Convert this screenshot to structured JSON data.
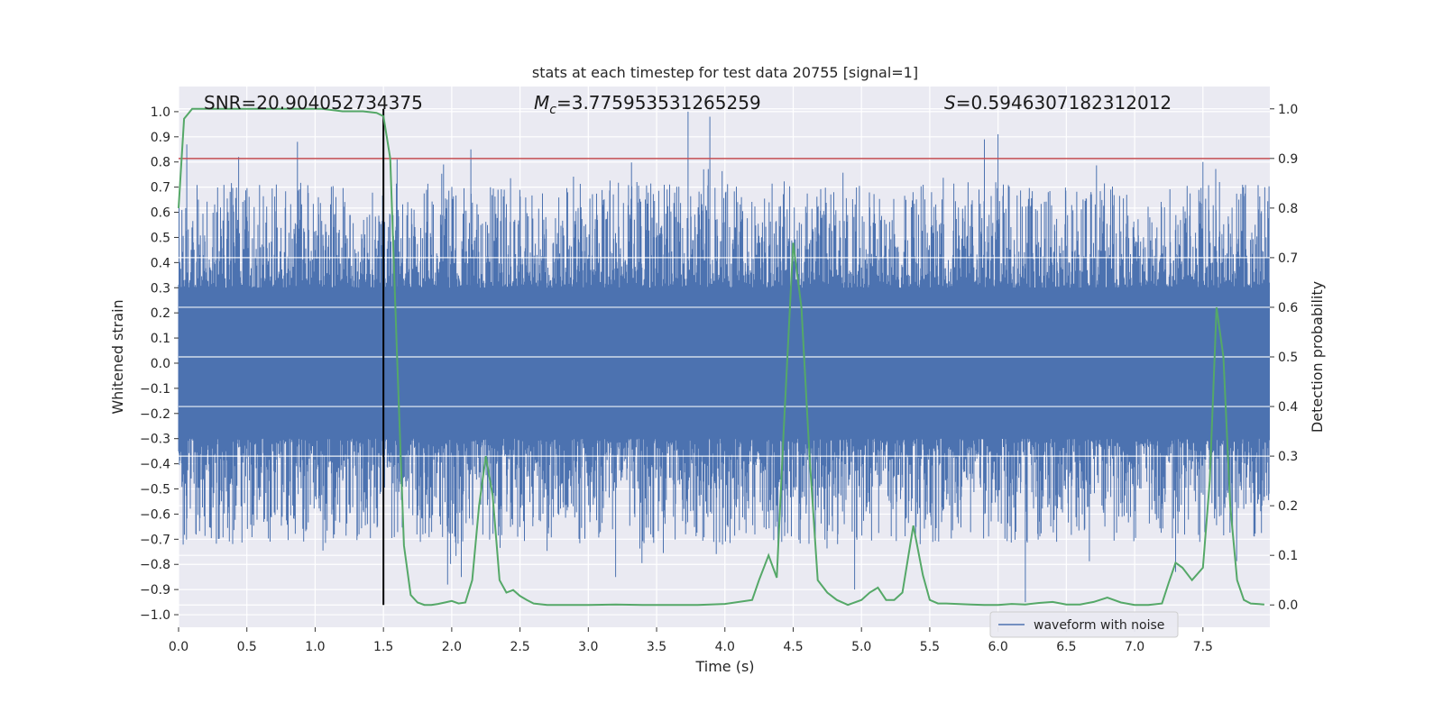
{
  "chart_data": {
    "type": "line",
    "title": "stats at each timestep for test data 20755 [signal=1]",
    "xlabel": "Time (s)",
    "ylabel": "Whitened strain",
    "y2label": "Detection probability",
    "xlim": [
      0,
      7.99
    ],
    "ylim": [
      -1.05,
      1.1
    ],
    "y2lim": [
      -0.045,
      1.045
    ],
    "xticks": [
      "0.0",
      "0.5",
      "1.0",
      "1.5",
      "2.0",
      "2.5",
      "3.0",
      "3.5",
      "4.0",
      "4.5",
      "5.0",
      "5.5",
      "6.0",
      "6.5",
      "7.0",
      "7.5"
    ],
    "yticks": [
      "−1.0",
      "−0.9",
      "−0.8",
      "−0.7",
      "−0.6",
      "−0.5",
      "−0.4",
      "−0.3",
      "−0.2",
      "−0.1",
      "0.0",
      "0.1",
      "0.2",
      "0.3",
      "0.4",
      "0.5",
      "0.6",
      "0.7",
      "0.8",
      "0.9",
      "1.0"
    ],
    "y2ticks": [
      "0.0",
      "0.1",
      "0.2",
      "0.3",
      "0.4",
      "0.5",
      "0.6",
      "0.7",
      "0.8",
      "0.9",
      "1.0"
    ],
    "grid": true,
    "legend": {
      "label": "waveform with noise",
      "placement": "lower-right"
    },
    "annotations": {
      "snr": "SNR=20.904052734375",
      "mc_symbol": "M",
      "mc_sub": "c",
      "mc_value": "=3.775953531265259",
      "s_symbol": "S",
      "s_value": "=0.5946307182312012"
    },
    "vline_x": 1.5,
    "threshold_prob": 0.9,
    "series": [
      {
        "name": "waveform with noise",
        "axis": "left",
        "color": "#4c72b0",
        "description": "whitened strain noise envelope, roughly ±0.3 core with spikes up to ±1.0",
        "peak_spikes": [
          {
            "t": 0.06,
            "v": 0.87
          },
          {
            "t": 0.44,
            "v": 0.82
          },
          {
            "t": 0.87,
            "v": 0.88
          },
          {
            "t": 1.6,
            "v": 0.81
          },
          {
            "t": 1.94,
            "v": 0.79
          },
          {
            "t": 2.14,
            "v": 0.85
          },
          {
            "t": 3.73,
            "v": 1.0
          },
          {
            "t": 3.89,
            "v": 0.98
          },
          {
            "t": 5.9,
            "v": 0.89
          },
          {
            "t": 6.0,
            "v": 0.91
          },
          {
            "t": 7.5,
            "v": 0.8
          }
        ],
        "trough_spikes": [
          {
            "t": 1.97,
            "v": -0.88
          },
          {
            "t": 2.07,
            "v": -0.85
          },
          {
            "t": 3.2,
            "v": -0.85
          },
          {
            "t": 4.95,
            "v": -0.9
          },
          {
            "t": 6.2,
            "v": -0.95
          },
          {
            "t": 7.3,
            "v": -0.83
          }
        ]
      },
      {
        "name": "detection probability",
        "axis": "right",
        "color": "#55a868",
        "x": [
          0.0,
          0.04,
          0.1,
          0.2,
          0.35,
          0.5,
          0.7,
          0.9,
          1.05,
          1.2,
          1.35,
          1.45,
          1.5,
          1.55,
          1.6,
          1.65,
          1.7,
          1.75,
          1.8,
          1.85,
          1.9,
          1.95,
          2.0,
          2.05,
          2.1,
          2.15,
          2.2,
          2.25,
          2.3,
          2.35,
          2.4,
          2.45,
          2.5,
          2.55,
          2.6,
          2.7,
          2.8,
          3.0,
          3.2,
          3.4,
          3.6,
          3.8,
          4.0,
          4.2,
          4.25,
          4.32,
          4.38,
          4.43,
          4.5,
          4.56,
          4.62,
          4.68,
          4.75,
          4.82,
          4.9,
          5.0,
          5.06,
          5.12,
          5.18,
          5.24,
          5.3,
          5.38,
          5.45,
          5.5,
          5.56,
          5.62,
          5.7,
          5.8,
          5.9,
          6.0,
          6.1,
          6.2,
          6.3,
          6.4,
          6.5,
          6.6,
          6.7,
          6.8,
          6.9,
          7.0,
          7.1,
          7.2,
          7.25,
          7.3,
          7.35,
          7.42,
          7.5,
          7.55,
          7.6,
          7.65,
          7.7,
          7.75,
          7.8,
          7.85,
          7.95
        ],
        "y": [
          0.8,
          0.98,
          1.0,
          1.0,
          1.0,
          1.0,
          1.0,
          1.0,
          1.0,
          0.995,
          0.995,
          0.992,
          0.985,
          0.9,
          0.5,
          0.12,
          0.02,
          0.005,
          0.0,
          0.0,
          0.002,
          0.005,
          0.008,
          0.003,
          0.005,
          0.05,
          0.2,
          0.3,
          0.22,
          0.05,
          0.025,
          0.03,
          0.018,
          0.01,
          0.003,
          0.0,
          0.0,
          0.0,
          0.001,
          0.0,
          0.0,
          0.0,
          0.002,
          0.01,
          0.05,
          0.1,
          0.055,
          0.35,
          0.73,
          0.6,
          0.3,
          0.05,
          0.025,
          0.01,
          0.0,
          0.01,
          0.025,
          0.035,
          0.01,
          0.01,
          0.025,
          0.16,
          0.06,
          0.01,
          0.003,
          0.003,
          0.002,
          0.001,
          0.0,
          0.0,
          0.002,
          0.001,
          0.004,
          0.006,
          0.001,
          0.001,
          0.006,
          0.015,
          0.005,
          0.0,
          0.0,
          0.003,
          0.045,
          0.085,
          0.075,
          0.05,
          0.075,
          0.25,
          0.6,
          0.5,
          0.2,
          0.05,
          0.01,
          0.003,
          0.001
        ]
      }
    ]
  }
}
